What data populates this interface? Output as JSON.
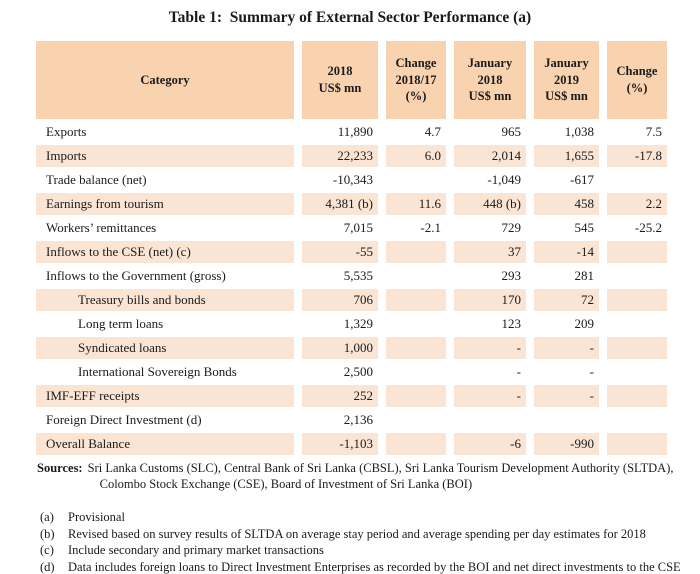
{
  "title": "Table 1:  Summary of External Sector Performance (a)",
  "colors": {
    "header_bg": "#F9D2AF",
    "stripe_bg": "#FAE5D5",
    "text": "#1b1b1b"
  },
  "table": {
    "columns": [
      {
        "label": "Category"
      },
      {
        "label": "2018\nUS$ mn"
      },
      {
        "label": "Change\n2018/17\n(%)"
      },
      {
        "label": "January\n2018\nUS$ mn"
      },
      {
        "label": "January\n2019\nUS$ mn"
      },
      {
        "label": "Change\n(%)"
      }
    ],
    "rows": [
      {
        "category": "Exports",
        "us2018": "11,890",
        "chg1817": "4.7",
        "jan2018": "965",
        "jan2019": "1,038",
        "chg": "7.5",
        "indent": false
      },
      {
        "category": "Imports",
        "us2018": "22,233",
        "chg1817": "6.0",
        "jan2018": "2,014",
        "jan2019": "1,655",
        "chg": "-17.8",
        "indent": false
      },
      {
        "category": "Trade balance (net)",
        "us2018": "-10,343",
        "chg1817": "",
        "jan2018": "-1,049",
        "jan2019": "-617",
        "chg": "",
        "indent": false
      },
      {
        "category": "Earnings from tourism",
        "us2018": "4,381 (b)",
        "chg1817": "11.6",
        "jan2018": "448 (b)",
        "jan2019": "458",
        "chg": "2.2",
        "indent": false
      },
      {
        "category": "Workers’ remittances",
        "us2018": "7,015",
        "chg1817": "-2.1",
        "jan2018": "729",
        "jan2019": "545",
        "chg": "-25.2",
        "indent": false
      },
      {
        "category": "Inflows to the CSE (net) (c)",
        "us2018": "-55",
        "chg1817": "",
        "jan2018": "37",
        "jan2019": "-14",
        "chg": "",
        "indent": false
      },
      {
        "category": "Inflows to the Government (gross)",
        "us2018": "5,535",
        "chg1817": "",
        "jan2018": "293",
        "jan2019": "281",
        "chg": "",
        "indent": false
      },
      {
        "category": "Treasury bills and bonds",
        "us2018": "706",
        "chg1817": "",
        "jan2018": "170",
        "jan2019": "72",
        "chg": "",
        "indent": true
      },
      {
        "category": "Long term loans",
        "us2018": "1,329",
        "chg1817": "",
        "jan2018": "123",
        "jan2019": "209",
        "chg": "",
        "indent": true
      },
      {
        "category": "Syndicated loans",
        "us2018": "1,000",
        "chg1817": "",
        "jan2018": "-",
        "jan2019": "-",
        "chg": "",
        "indent": true
      },
      {
        "category": "International Sovereign Bonds",
        "us2018": "2,500",
        "chg1817": "",
        "jan2018": "-",
        "jan2019": "-",
        "chg": "",
        "indent": true
      },
      {
        "category": "IMF-EFF receipts",
        "us2018": "252",
        "chg1817": "",
        "jan2018": "-",
        "jan2019": "-",
        "chg": "",
        "indent": false
      },
      {
        "category": "Foreign Direct Investment (d)",
        "us2018": "2,136",
        "chg1817": "",
        "jan2018": "",
        "jan2019": "",
        "chg": "",
        "indent": false
      },
      {
        "category": "Overall Balance",
        "us2018": "-1,103",
        "chg1817": "",
        "jan2018": "-6",
        "jan2019": "-990",
        "chg": "",
        "indent": false
      }
    ]
  },
  "sources": {
    "label": "Sources:",
    "line1": "Sri Lanka Customs (SLC), Central Bank of Sri Lanka (CBSL), Sri Lanka Tourism Development Authority (SLTDA),",
    "line2": "Colombo Stock Exchange (CSE), Board of Investment of Sri Lanka (BOI)"
  },
  "footnotes": [
    {
      "label": "(a)",
      "text": "Provisional"
    },
    {
      "label": "(b)",
      "text": "Revised based on survey results of SLTDA on average stay period and average spending per day estimates for 2018"
    },
    {
      "label": "(c)",
      "text": "Include secondary and primary market transactions"
    },
    {
      "label": "(d)",
      "text": "Data includes foreign loans to Direct Investment Enterprises as recorded by the BOI and net direct investments to the CSE"
    }
  ]
}
